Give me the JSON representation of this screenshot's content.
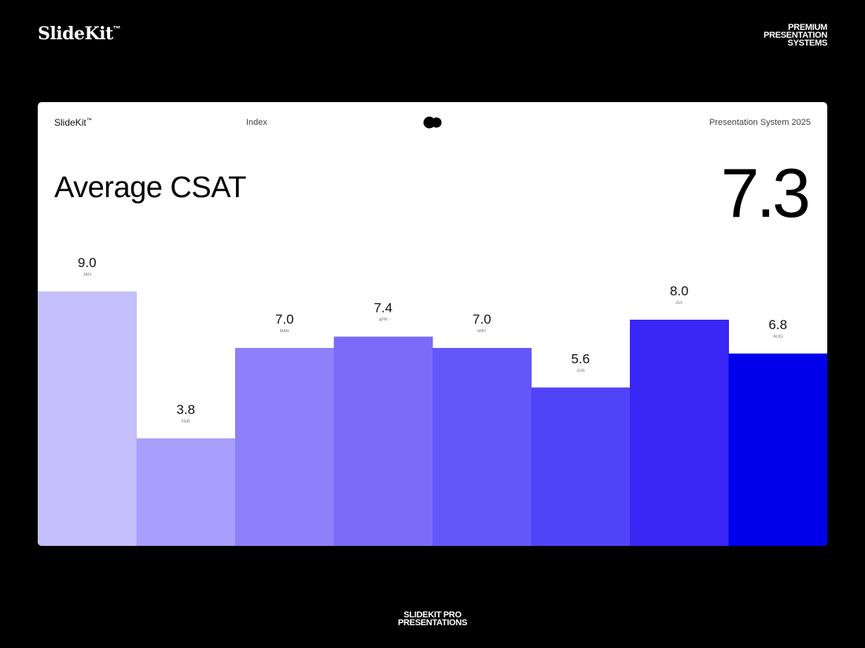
{
  "page": {
    "brand": "SlideKit",
    "brand_mark": "™",
    "tagline_lines": [
      "PREMIUM",
      "PRESENTATION",
      "SYSTEMS"
    ],
    "footer_lines": [
      "SLIDEKIT PRO",
      "PRESENTATIONS"
    ],
    "background_color": "#000000"
  },
  "slide": {
    "brand": "SlideKit",
    "brand_mark": "™",
    "nav_label": "Index",
    "logo_icon": "double-circle-logo-icon",
    "system_label": "Presentation System 2025",
    "title": "Average CSAT",
    "big_value": "7.3"
  },
  "chart_data": {
    "type": "bar",
    "title": "Average CSAT",
    "categories": [
      "JAN",
      "FEB",
      "MAR",
      "APR",
      "MAY",
      "JUN",
      "JUL",
      "AUG"
    ],
    "values": [
      9.0,
      3.8,
      7.0,
      7.4,
      7.0,
      5.6,
      8.0,
      6.8
    ],
    "value_labels": [
      "9.0",
      "3.8",
      "7.0",
      "7.4",
      "7.0",
      "5.6",
      "8.0",
      "6.8"
    ],
    "colors": [
      "#c5bffc",
      "#a89efb",
      "#8d80fa",
      "#7a6cf9",
      "#6457f9",
      "#5143f7",
      "#3a27f5",
      "#0000ea"
    ],
    "ylim": [
      0,
      9
    ],
    "grid": false,
    "legend": "none"
  }
}
